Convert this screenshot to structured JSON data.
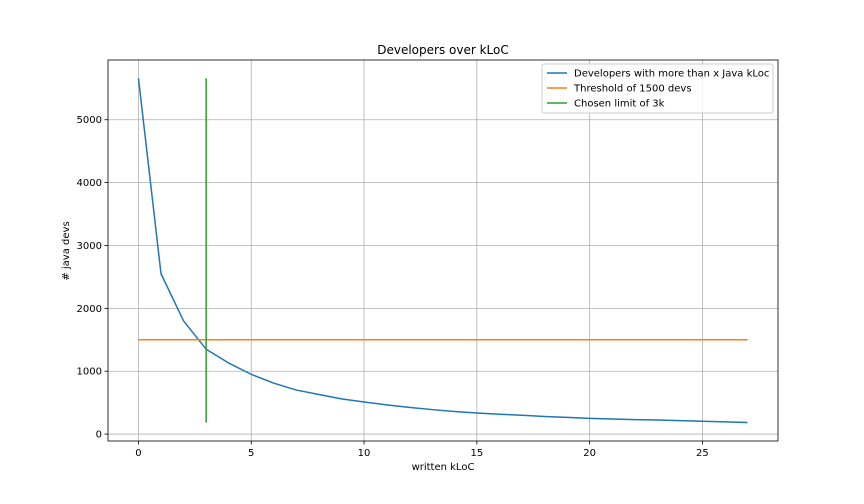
{
  "chart_data": {
    "type": "line",
    "title": "Developers over kLoC",
    "xlabel": "written kLoC",
    "ylabel": "# java devs",
    "xlim": [
      -1.35,
      28.35
    ],
    "ylim": [
      -110,
      5950
    ],
    "xticks": [
      0,
      5,
      10,
      15,
      20,
      25
    ],
    "yticks": [
      0,
      1000,
      2000,
      3000,
      4000,
      5000
    ],
    "grid": true,
    "legend_position": "top-right",
    "series": [
      {
        "name": "Developers with more than x Java kLoc",
        "color": "#1f77b4",
        "x": [
          0,
          1,
          2,
          3,
          4,
          5,
          6,
          7,
          8,
          9,
          10,
          11,
          12,
          13,
          14,
          15,
          16,
          17,
          18,
          19,
          20,
          21,
          22,
          23,
          24,
          25,
          26,
          27
        ],
        "y": [
          5660,
          2550,
          1800,
          1350,
          1130,
          950,
          810,
          700,
          630,
          560,
          510,
          465,
          425,
          390,
          360,
          335,
          315,
          300,
          280,
          265,
          250,
          240,
          230,
          225,
          215,
          205,
          195,
          185
        ]
      },
      {
        "name": "Threshold of 1500 devs",
        "color": "#ff7f0e",
        "x": [
          0,
          27
        ],
        "y": [
          1500,
          1500
        ]
      },
      {
        "name": "Chosen limit of 3k",
        "color": "#2ca02c",
        "x": [
          3,
          3
        ],
        "y": [
          185,
          5660
        ]
      }
    ]
  }
}
